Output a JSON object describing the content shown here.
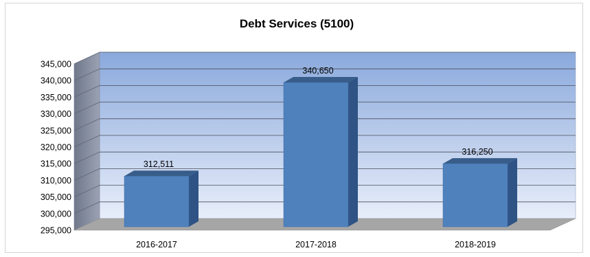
{
  "chart_data": {
    "type": "bar",
    "title": "Debt Services (5100)",
    "xlabel": "",
    "ylabel": "",
    "categories": [
      "2016-2017",
      "2017-2018",
      "2018-2019"
    ],
    "values": [
      312511,
      340650,
      316250
    ],
    "value_labels": [
      "312,511",
      "340,650",
      "316,250"
    ],
    "ylim": [
      295000,
      345000
    ],
    "yticks": [
      295000,
      300000,
      305000,
      310000,
      315000,
      320000,
      325000,
      330000,
      335000,
      340000,
      345000
    ],
    "ytick_labels": [
      "295,000",
      "300,000",
      "305,000",
      "310,000",
      "315,000",
      "320,000",
      "325,000",
      "330,000",
      "335,000",
      "340,000",
      "345,000"
    ],
    "grid": true,
    "style": "3d-column",
    "colors": {
      "bar_front": "#4f81bd",
      "bar_side": "#2e5384",
      "bar_top": "#385d8a",
      "back_wall_top": "#8aa9dc",
      "back_wall_bottom": "#e8eefa",
      "side_wall": "#8e96a8",
      "floor": "#a6a6a6"
    }
  }
}
